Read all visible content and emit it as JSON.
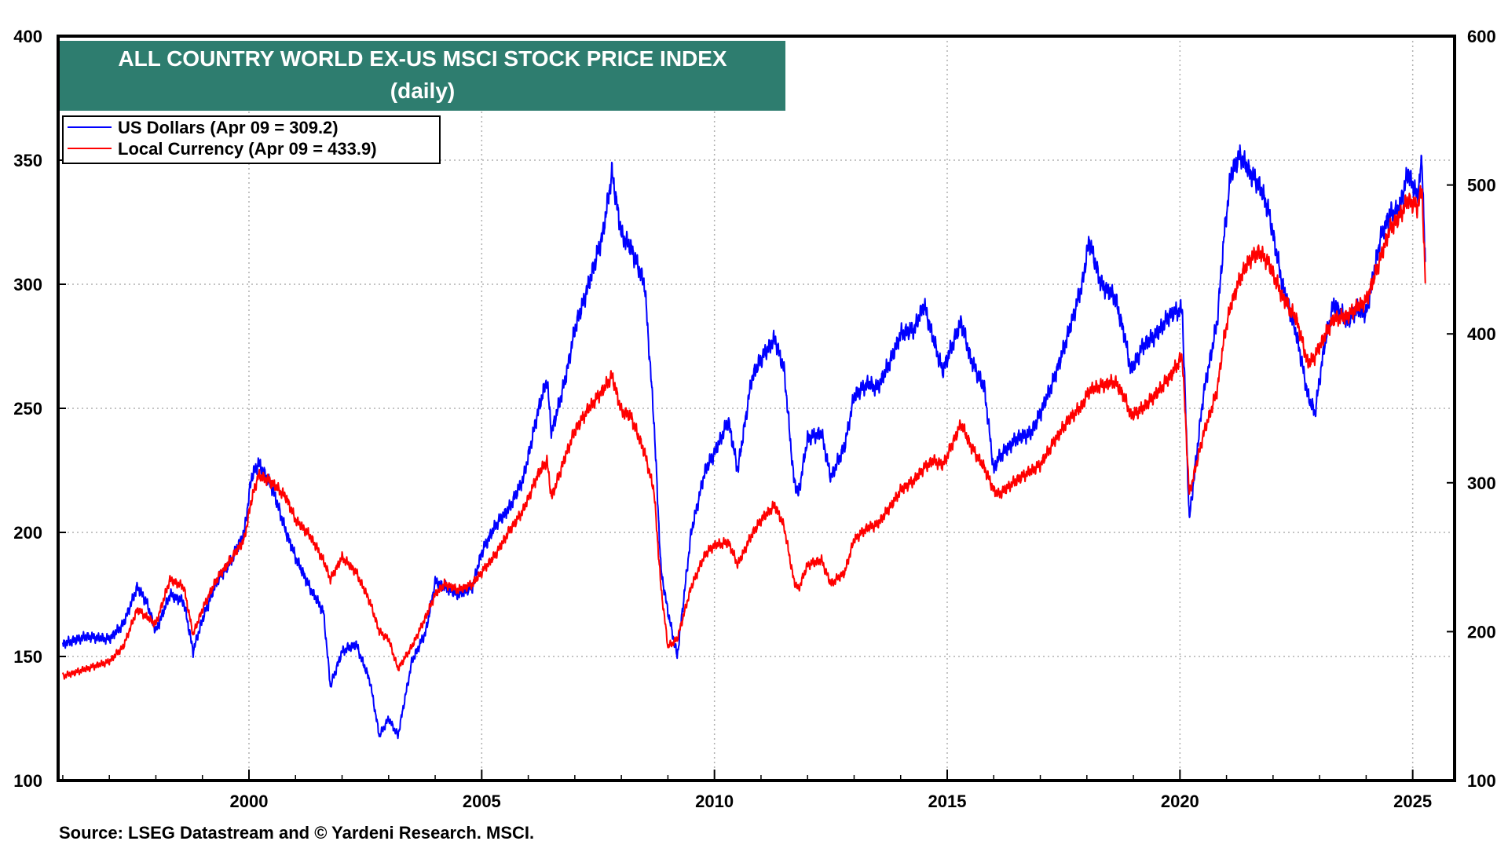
{
  "chart_data": {
    "type": "line",
    "title": "ALL COUNTRY WORLD EX-US MSCI STOCK PRICE INDEX",
    "subtitle": "(daily)",
    "title_box_color": "#2e7d6f",
    "source": "Source: LSEG Datastream and © Yardeni Research. MSCI.",
    "xlim": [
      1995.9,
      2025.9
    ],
    "x_ticks": [
      2000,
      2005,
      2010,
      2015,
      2020,
      2025
    ],
    "x_tick_labels": [
      "2000",
      "2005",
      "2010",
      "2015",
      "2020",
      "2025"
    ],
    "y_left": {
      "lim": [
        100,
        400
      ],
      "ticks": [
        100,
        150,
        200,
        250,
        300,
        350,
        400
      ],
      "labels": [
        "100",
        "150",
        "200",
        "250",
        "300",
        "350",
        "400"
      ]
    },
    "y_right": {
      "lim": [
        100,
        600
      ],
      "ticks": [
        100,
        200,
        300,
        400,
        500,
        600
      ],
      "labels": [
        "100",
        "200",
        "300",
        "400",
        "500",
        "600"
      ]
    },
    "grid": true,
    "legend_position": "top-left",
    "series": [
      {
        "name": "US Dollars (Apr 09 = 309.2)",
        "axis": "left",
        "color": "#0000ff",
        "x": [
          1996.0,
          1996.5,
          1997.0,
          1997.3,
          1997.6,
          1997.8,
          1998.0,
          1998.3,
          1998.6,
          1998.8,
          1999.0,
          1999.3,
          1999.6,
          1999.9,
          2000.05,
          2000.2,
          2000.5,
          2000.8,
          2001.0,
          2001.3,
          2001.6,
          2001.75,
          2002.0,
          2002.3,
          2002.6,
          2002.8,
          2003.0,
          2003.2,
          2003.5,
          2003.8,
          2004.0,
          2004.2,
          2004.5,
          2004.8,
          2005.0,
          2005.3,
          2005.6,
          2005.9,
          2006.2,
          2006.4,
          2006.5,
          2006.8,
          2007.0,
          2007.3,
          2007.6,
          2007.8,
          2008.0,
          2008.2,
          2008.5,
          2008.7,
          2008.85,
          2009.0,
          2009.2,
          2009.5,
          2009.8,
          2010.0,
          2010.3,
          2010.5,
          2010.8,
          2011.0,
          2011.3,
          2011.5,
          2011.7,
          2011.8,
          2012.0,
          2012.3,
          2012.5,
          2012.8,
          2013.0,
          2013.3,
          2013.5,
          2013.8,
          2014.0,
          2014.3,
          2014.5,
          2014.7,
          2014.9,
          2015.0,
          2015.3,
          2015.5,
          2015.8,
          2016.0,
          2016.1,
          2016.5,
          2016.8,
          2017.0,
          2017.3,
          2017.6,
          2017.9,
          2018.05,
          2018.3,
          2018.6,
          2018.8,
          2018.95,
          2019.2,
          2019.5,
          2019.8,
          2020.05,
          2020.2,
          2020.5,
          2020.8,
          2020.95,
          2021.1,
          2021.3,
          2021.5,
          2021.7,
          2021.9,
          2022.2,
          2022.5,
          2022.75,
          2022.9,
          2023.1,
          2023.3,
          2023.6,
          2023.8,
          2024.0,
          2024.3,
          2024.5,
          2024.7,
          2024.9,
          2025.1,
          2025.2,
          2025.27
        ],
        "values": [
          155,
          158,
          157,
          163,
          178,
          172,
          160,
          175,
          172,
          152,
          165,
          180,
          188,
          200,
          222,
          228,
          218,
          200,
          190,
          178,
          168,
          138,
          152,
          155,
          140,
          118,
          125,
          118,
          148,
          160,
          180,
          178,
          175,
          178,
          192,
          203,
          210,
          222,
          248,
          262,
          240,
          262,
          282,
          300,
          320,
          345,
          320,
          315,
          300,
          245,
          185,
          168,
          150,
          200,
          225,
          232,
          245,
          225,
          262,
          270,
          278,
          265,
          222,
          215,
          238,
          240,
          222,
          235,
          255,
          260,
          258,
          270,
          280,
          282,
          292,
          278,
          265,
          270,
          285,
          270,
          258,
          225,
          230,
          238,
          240,
          248,
          262,
          280,
          300,
          318,
          300,
          295,
          280,
          265,
          275,
          280,
          288,
          290,
          205,
          255,
          285,
          320,
          345,
          352,
          345,
          340,
          330,
          300,
          280,
          255,
          248,
          275,
          292,
          285,
          290,
          288,
          318,
          328,
          330,
          345,
          335,
          350,
          309
        ]
      },
      {
        "name": "Local Currency (Apr 09 = 433.9)",
        "axis": "right",
        "color": "#ff0000",
        "x": [
          1996.0,
          1996.5,
          1997.0,
          1997.3,
          1997.6,
          1997.8,
          1998.0,
          1998.3,
          1998.6,
          1998.8,
          1999.0,
          1999.3,
          1999.6,
          1999.9,
          2000.05,
          2000.2,
          2000.5,
          2000.8,
          2001.0,
          2001.3,
          2001.6,
          2001.75,
          2002.0,
          2002.3,
          2002.6,
          2002.8,
          2003.0,
          2003.2,
          2003.5,
          2003.8,
          2004.0,
          2004.2,
          2004.5,
          2004.8,
          2005.0,
          2005.3,
          2005.6,
          2005.9,
          2006.2,
          2006.4,
          2006.5,
          2006.8,
          2007.0,
          2007.3,
          2007.6,
          2007.8,
          2008.0,
          2008.2,
          2008.5,
          2008.7,
          2008.85,
          2009.0,
          2009.2,
          2009.5,
          2009.8,
          2010.0,
          2010.3,
          2010.5,
          2010.8,
          2011.0,
          2011.3,
          2011.5,
          2011.7,
          2011.8,
          2012.0,
          2012.3,
          2012.5,
          2012.8,
          2013.0,
          2013.3,
          2013.5,
          2013.8,
          2014.0,
          2014.3,
          2014.5,
          2014.7,
          2014.9,
          2015.0,
          2015.3,
          2015.5,
          2015.8,
          2016.0,
          2016.1,
          2016.5,
          2016.8,
          2017.0,
          2017.3,
          2017.6,
          2017.9,
          2018.05,
          2018.3,
          2018.6,
          2018.8,
          2018.95,
          2019.2,
          2019.5,
          2019.8,
          2020.05,
          2020.2,
          2020.5,
          2020.8,
          2020.95,
          2021.1,
          2021.3,
          2021.5,
          2021.7,
          2021.9,
          2022.2,
          2022.5,
          2022.75,
          2022.9,
          2023.1,
          2023.3,
          2023.6,
          2023.8,
          2024.0,
          2024.3,
          2024.5,
          2024.7,
          2024.9,
          2025.1,
          2025.2,
          2025.27
        ],
        "values": [
          170,
          175,
          180,
          190,
          215,
          210,
          205,
          235,
          230,
          198,
          215,
          235,
          248,
          262,
          288,
          305,
          300,
          290,
          275,
          265,
          248,
          235,
          250,
          240,
          220,
          200,
          195,
          175,
          190,
          210,
          225,
          232,
          228,
          232,
          240,
          252,
          268,
          282,
          305,
          315,
          290,
          318,
          335,
          350,
          362,
          372,
          348,
          345,
          320,
          295,
          230,
          190,
          195,
          230,
          252,
          258,
          260,
          245,
          265,
          275,
          285,
          270,
          235,
          228,
          245,
          248,
          232,
          240,
          262,
          270,
          272,
          285,
          295,
          302,
          310,
          315,
          312,
          318,
          340,
          325,
          310,
          295,
          292,
          302,
          308,
          312,
          328,
          342,
          352,
          362,
          365,
          368,
          358,
          345,
          350,
          360,
          372,
          385,
          292,
          332,
          362,
          398,
          420,
          438,
          450,
          455,
          448,
          425,
          410,
          380,
          385,
          398,
          410,
          412,
          418,
          422,
          450,
          470,
          478,
          490,
          485,
          498,
          433.9
        ]
      }
    ]
  }
}
